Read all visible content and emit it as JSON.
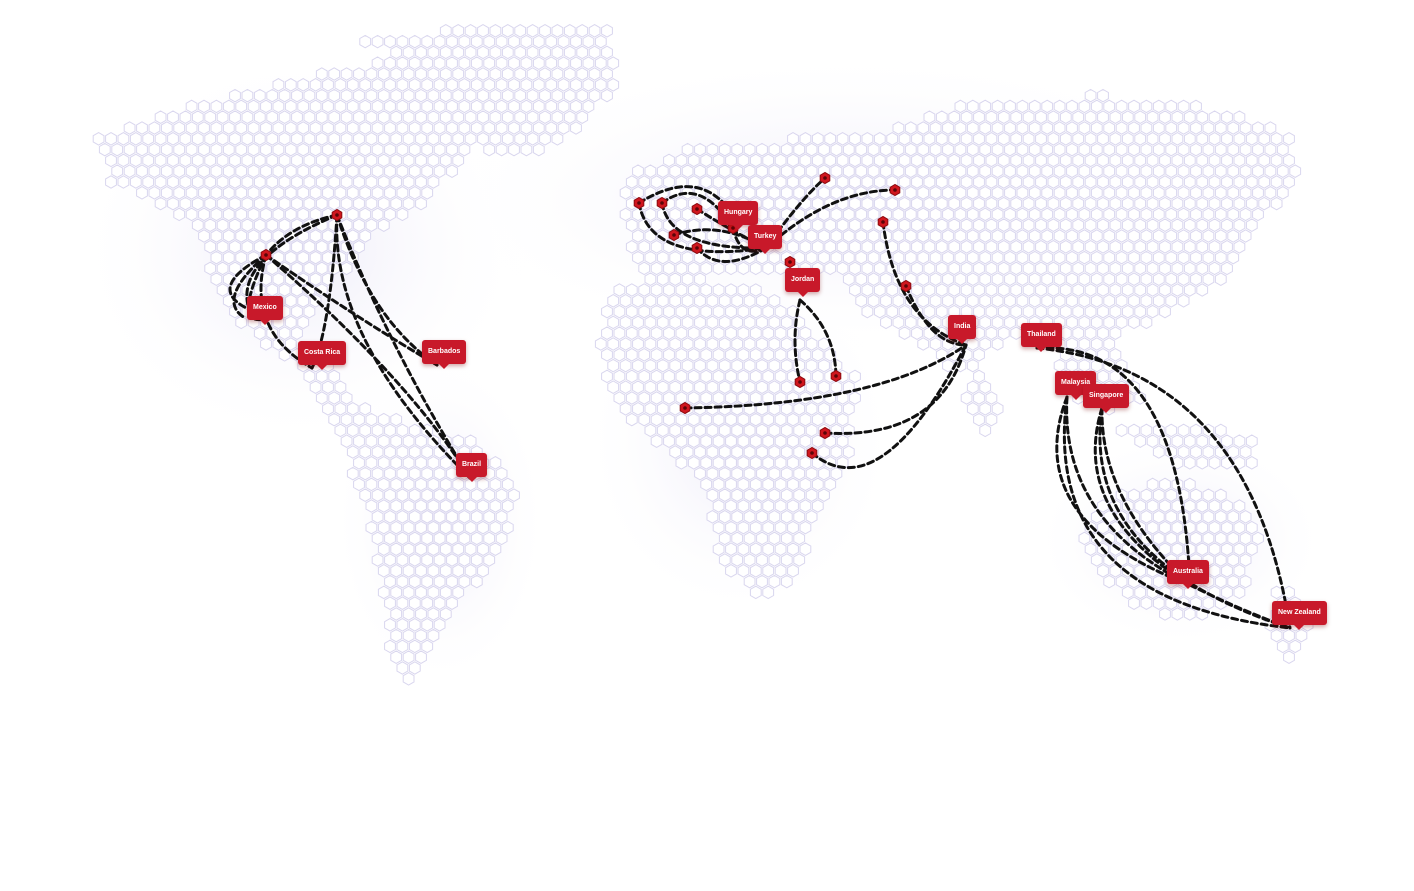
{
  "map": {
    "colors": {
      "hex_fill": "#ffffff",
      "hex_stroke": "#d9d6ee",
      "route": "#111111",
      "marker": "#d0161e",
      "label_bg": "#c8192a",
      "label_text": "#ffffff"
    },
    "labels": {
      "mexico": "Mexico",
      "costa_rica": "Costa Rica",
      "barbados": "Barbados",
      "brazil": "Brazil",
      "hungary": "Hungary",
      "turkey": "Turkey",
      "jordan": "Jordan",
      "india": "India",
      "thailand": "Thailand",
      "malaysia": "Malaysia",
      "singapore": "Singapore",
      "australia": "Australia",
      "new_zealand": "New Zealand"
    }
  }
}
